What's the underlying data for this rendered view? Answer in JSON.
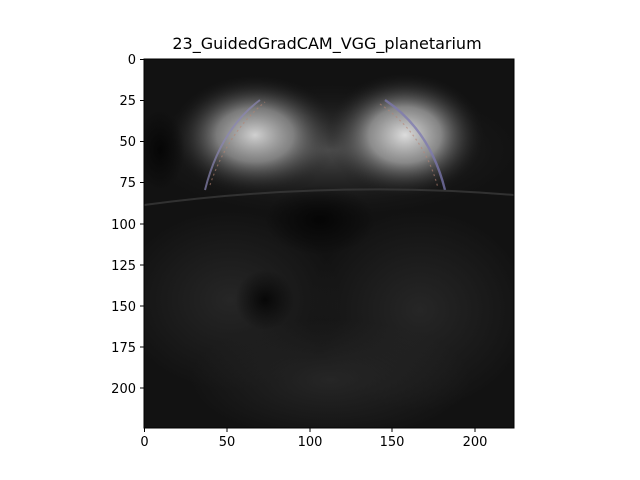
{
  "figure": {
    "title": "23_GuidedGradCAM_VGG_planetarium"
  },
  "image": {
    "description_colors": {
      "background": "#0d0d0d",
      "highlight": "#d8d8d8",
      "edge_tint_blue": "#7a7aa8",
      "edge_tint_red": "#b07060"
    }
  },
  "axes": {
    "x_ticks": [
      "0",
      "50",
      "100",
      "150",
      "200"
    ],
    "y_ticks": [
      "0",
      "25",
      "50",
      "75",
      "100",
      "125",
      "150",
      "175",
      "200"
    ],
    "x_range": [
      0,
      224
    ],
    "y_range": [
      0,
      224
    ]
  }
}
